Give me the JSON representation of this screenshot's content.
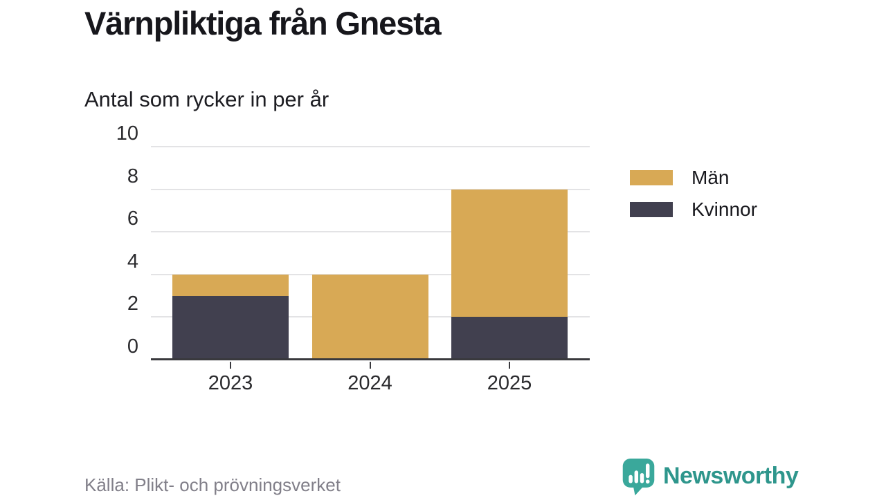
{
  "title": "Värnpliktiga från Gnesta",
  "subtitle": "Antal som rycker in per år",
  "source": "Källa: Plikt- och prövningsverket",
  "brand": {
    "name": "Newsworthy",
    "icon": "newsworthy-chart-bubble-icon",
    "icon_color": "#3aa89b",
    "wordmark_color": "#2e968c"
  },
  "colors": {
    "men": "#d8a955",
    "women": "#41404f",
    "axis": "#39393d",
    "grid": "#e3e3e5",
    "text": "#17171c",
    "muted": "#817f89"
  },
  "legend": [
    {
      "label": "Män",
      "color_key": "men"
    },
    {
      "label": "Kvinnor",
      "color_key": "women"
    }
  ],
  "chart_data": {
    "type": "bar",
    "stacked": true,
    "categories": [
      "2023",
      "2024",
      "2025"
    ],
    "series": [
      {
        "name": "Kvinnor",
        "color_key": "women",
        "values": [
          3,
          0,
          2
        ]
      },
      {
        "name": "Män",
        "color_key": "men",
        "values": [
          1,
          4,
          6
        ]
      }
    ],
    "totals": [
      4,
      4,
      8
    ],
    "title": "Värnpliktiga från Gnesta",
    "subtitle": "Antal som rycker in per år",
    "xlabel": "",
    "ylabel": "Antal som rycker in per år",
    "ylim": [
      0,
      10
    ],
    "yticks": [
      0,
      2,
      4,
      6,
      8,
      10
    ],
    "grid": true,
    "legend_position": "right",
    "legend_order": [
      "Män",
      "Kvinnor"
    ]
  }
}
